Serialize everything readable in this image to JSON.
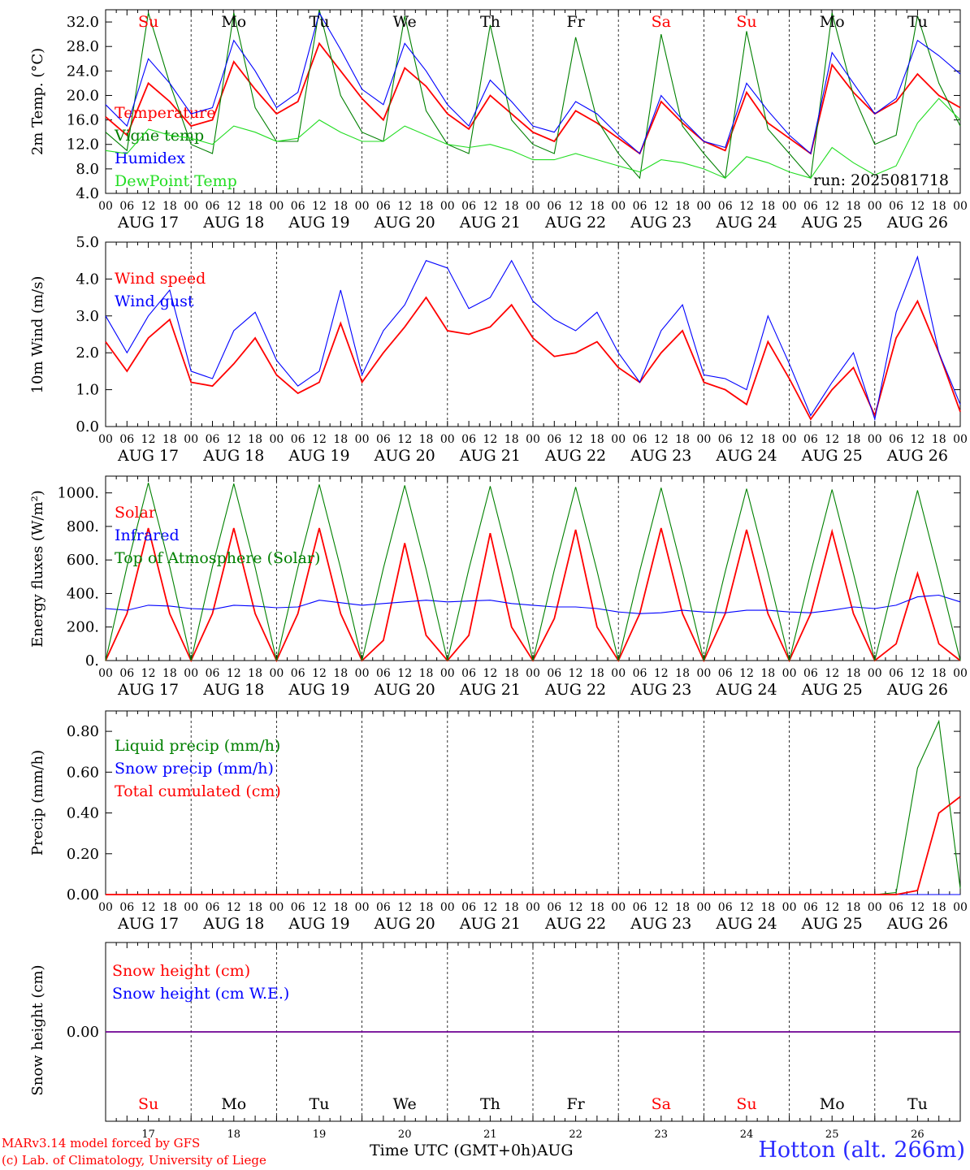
{
  "run_label": "run: 2025081718",
  "footer": {
    "credit_line1": "MARv3.14 model forced by GFS",
    "credit_line2": "(c) Lab. of Climatology, University of Liege",
    "x_title": "Time UTC (GMT+0h)AUG",
    "station": "Hotton (alt. 266m)"
  },
  "colors": {
    "red": "#ff0000",
    "green": "#008000",
    "blue": "#0000ff",
    "lightgreen": "#22dd22"
  },
  "chart_data": {
    "type": "line",
    "days": [
      {
        "dow": "Su",
        "date": "AUG 17",
        "num": "17",
        "weekend": true
      },
      {
        "dow": "Mo",
        "date": "AUG 18",
        "num": "18",
        "weekend": false
      },
      {
        "dow": "Tu",
        "date": "AUG 19",
        "num": "19",
        "weekend": false
      },
      {
        "dow": "We",
        "date": "AUG 20",
        "num": "20",
        "weekend": false
      },
      {
        "dow": "Th",
        "date": "AUG 21",
        "num": "21",
        "weekend": false
      },
      {
        "dow": "Fr",
        "date": "AUG 22",
        "num": "22",
        "weekend": false
      },
      {
        "dow": "Sa",
        "date": "AUG 23",
        "num": "23",
        "weekend": true
      },
      {
        "dow": "Su",
        "date": "AUG 24",
        "num": "24",
        "weekend": true
      },
      {
        "dow": "Mo",
        "date": "AUG 25",
        "num": "25",
        "weekend": false
      },
      {
        "dow": "Tu",
        "date": "AUG 26",
        "num": "26",
        "weekend": false
      }
    ],
    "hour_ticks": [
      "00",
      "06",
      "12",
      "18"
    ],
    "x_hours_note": "series sampled every 6 hours from AUG 17 00 UTC to AUG 27 00 UTC",
    "panels": [
      {
        "id": "temperature",
        "ylabel": "2m Temp. (°C)",
        "ylim": [
          4.0,
          34.0
        ],
        "yticks": [
          "4.0",
          "8.0",
          "12.0",
          "16.0",
          "20.0",
          "24.0",
          "28.0",
          "32.0"
        ],
        "series": [
          {
            "name": "Temperature",
            "color": "red",
            "values": [
              16.5,
              13.5,
              22.0,
              19.0,
              15.0,
              16.0,
              25.5,
              21.0,
              17.0,
              19.0,
              28.5,
              24.0,
              19.5,
              16.0,
              24.5,
              21.5,
              17.0,
              14.5,
              20.0,
              17.0,
              14.0,
              12.5,
              17.5,
              15.5,
              13.0,
              10.5,
              19.0,
              15.5,
              12.5,
              11.0,
              20.5,
              15.5,
              13.0,
              10.5,
              25.0,
              20.5,
              17.0,
              19.0,
              23.5,
              20.0,
              18.0
            ]
          },
          {
            "name": "Vigne temp",
            "color": "green",
            "values": [
              14.0,
              11.0,
              33.5,
              22.0,
              12.0,
              10.5,
              33.5,
              18.0,
              12.5,
              12.5,
              34.0,
              20.0,
              14.0,
              12.5,
              33.0,
              17.5,
              12.0,
              10.5,
              31.5,
              16.0,
              12.0,
              10.5,
              29.5,
              16.0,
              10.5,
              6.5,
              30.0,
              15.0,
              10.5,
              6.5,
              30.5,
              14.5,
              10.5,
              6.5,
              33.5,
              20.0,
              12.0,
              13.5,
              33.0,
              22.0,
              15.0
            ]
          },
          {
            "name": "Humidex",
            "color": "blue",
            "values": [
              18.5,
              15.0,
              26.0,
              22.0,
              17.0,
              18.0,
              29.0,
              24.0,
              18.0,
              20.5,
              33.5,
              27.5,
              21.0,
              18.5,
              28.5,
              24.0,
              18.5,
              15.0,
              22.5,
              19.0,
              15.0,
              14.0,
              19.0,
              17.0,
              13.5,
              10.5,
              20.0,
              16.0,
              12.5,
              11.5,
              22.0,
              17.5,
              13.5,
              10.5,
              27.0,
              22.0,
              17.0,
              19.5,
              29.0,
              26.5,
              23.5
            ]
          },
          {
            "name": "DewPoint Temp",
            "color": "lightgreen",
            "values": [
              11.0,
              10.5,
              14.5,
              13.5,
              13.0,
              12.0,
              15.0,
              14.0,
              12.5,
              13.0,
              16.0,
              14.0,
              12.5,
              12.5,
              15.0,
              13.5,
              12.0,
              11.5,
              12.0,
              11.0,
              9.5,
              9.5,
              10.5,
              9.5,
              8.5,
              7.5,
              9.5,
              9.0,
              8.0,
              6.5,
              10.0,
              9.0,
              7.5,
              6.5,
              11.5,
              9.0,
              7.0,
              8.5,
              15.5,
              19.5,
              16.0
            ]
          }
        ]
      },
      {
        "id": "wind",
        "ylabel": "10m Wind (m/s)",
        "ylim": [
          0.0,
          5.0
        ],
        "yticks": [
          "0.0",
          "1.0",
          "2.0",
          "3.0",
          "4.0",
          "5.0"
        ],
        "series": [
          {
            "name": "Wind speed",
            "color": "red",
            "values": [
              2.3,
              1.5,
              2.4,
              2.9,
              1.2,
              1.1,
              1.7,
              2.4,
              1.4,
              0.9,
              1.2,
              2.8,
              1.2,
              2.0,
              2.7,
              3.5,
              2.6,
              2.5,
              2.7,
              3.3,
              2.4,
              1.9,
              2.0,
              2.3,
              1.6,
              1.2,
              2.0,
              2.6,
              1.2,
              1.0,
              0.6,
              2.3,
              1.3,
              0.2,
              1.0,
              1.6,
              0.3,
              2.4,
              3.4,
              2.0,
              0.4
            ]
          },
          {
            "name": "Wind gust",
            "color": "blue",
            "values": [
              3.0,
              2.0,
              3.0,
              3.7,
              1.5,
              1.3,
              2.6,
              3.1,
              1.8,
              1.1,
              1.5,
              3.7,
              1.4,
              2.6,
              3.3,
              4.5,
              4.3,
              3.2,
              3.5,
              4.5,
              3.4,
              2.9,
              2.6,
              3.1,
              2.0,
              1.2,
              2.6,
              3.3,
              1.4,
              1.3,
              1.0,
              3.0,
              1.7,
              0.3,
              1.2,
              2.0,
              0.2,
              3.1,
              4.6,
              2.0,
              0.6
            ]
          }
        ]
      },
      {
        "id": "energy",
        "ylabel": "Energy fluxes (W/m²)",
        "ylim": [
          0,
          1100
        ],
        "yticks": [
          "0.",
          "200.",
          "400.",
          "600.",
          "800.",
          "1000."
        ],
        "series": [
          {
            "name": "Solar",
            "color": "red",
            "values": [
              0,
              280,
              790,
              280,
              0,
              280,
              790,
              280,
              0,
              280,
              790,
              280,
              0,
              120,
              700,
              150,
              0,
              150,
              760,
              200,
              0,
              250,
              780,
              200,
              0,
              280,
              790,
              280,
              0,
              280,
              780,
              280,
              0,
              280,
              770,
              280,
              0,
              100,
              520,
              100,
              0
            ]
          },
          {
            "name": "Infrared",
            "color": "blue",
            "values": [
              310,
              300,
              330,
              325,
              310,
              305,
              330,
              325,
              315,
              320,
              360,
              345,
              330,
              340,
              350,
              360,
              350,
              355,
              360,
              340,
              330,
              320,
              320,
              310,
              290,
              280,
              285,
              300,
              290,
              285,
              300,
              300,
              290,
              285,
              300,
              320,
              310,
              330,
              380,
              390,
              350
            ]
          },
          {
            "name": "Top of Atmosphere (Solar)",
            "color": "green",
            "values": [
              0,
              560,
              1060,
              560,
              0,
              560,
              1055,
              555,
              0,
              555,
              1050,
              550,
              0,
              550,
              1045,
              545,
              0,
              545,
              1040,
              540,
              0,
              540,
              1035,
              535,
              0,
              535,
              1030,
              530,
              0,
              530,
              1025,
              525,
              0,
              525,
              1020,
              520,
              0,
              520,
              1015,
              515,
              0
            ]
          }
        ]
      },
      {
        "id": "precip",
        "ylabel": "Precip (mm/h)",
        "ylim": [
          0.0,
          0.9
        ],
        "yticks": [
          "0.00",
          "0.20",
          "0.40",
          "0.60",
          "0.80"
        ],
        "series": [
          {
            "name": "Liquid precip (mm/h)",
            "color": "green",
            "values": [
              0,
              0,
              0,
              0,
              0,
              0,
              0,
              0,
              0,
              0,
              0,
              0,
              0,
              0,
              0,
              0,
              0,
              0,
              0,
              0,
              0,
              0,
              0,
              0,
              0,
              0,
              0,
              0,
              0,
              0,
              0,
              0,
              0,
              0,
              0,
              0,
              0,
              0.01,
              0.62,
              0.85,
              0.03
            ]
          },
          {
            "name": "Snow precip (mm/h)",
            "color": "blue",
            "values": [
              0,
              0,
              0,
              0,
              0,
              0,
              0,
              0,
              0,
              0,
              0,
              0,
              0,
              0,
              0,
              0,
              0,
              0,
              0,
              0,
              0,
              0,
              0,
              0,
              0,
              0,
              0,
              0,
              0,
              0,
              0,
              0,
              0,
              0,
              0,
              0,
              0,
              0,
              0,
              0,
              0
            ]
          },
          {
            "name": "Total cumulated (cm)",
            "color": "red",
            "values": [
              0,
              0,
              0,
              0,
              0,
              0,
              0,
              0,
              0,
              0,
              0,
              0,
              0,
              0,
              0,
              0,
              0,
              0,
              0,
              0,
              0,
              0,
              0,
              0,
              0,
              0,
              0,
              0,
              0,
              0,
              0,
              0,
              0,
              0,
              0,
              0,
              0,
              0,
              0.02,
              0.4,
              0.48
            ]
          }
        ]
      },
      {
        "id": "snow",
        "ylabel": "Snow height (cm)",
        "ylim": [
          -1.0,
          1.0
        ],
        "yticks": [
          "0.00"
        ],
        "series": [
          {
            "name": "Snow height (cm)",
            "color": "red",
            "values": [
              0,
              0,
              0,
              0,
              0,
              0,
              0,
              0,
              0,
              0,
              0,
              0,
              0,
              0,
              0,
              0,
              0,
              0,
              0,
              0,
              0,
              0,
              0,
              0,
              0,
              0,
              0,
              0,
              0,
              0,
              0,
              0,
              0,
              0,
              0,
              0,
              0,
              0,
              0,
              0,
              0
            ]
          },
          {
            "name": "Snow height (cm W.E.)",
            "color": "blue",
            "values": [
              0,
              0,
              0,
              0,
              0,
              0,
              0,
              0,
              0,
              0,
              0,
              0,
              0,
              0,
              0,
              0,
              0,
              0,
              0,
              0,
              0,
              0,
              0,
              0,
              0,
              0,
              0,
              0,
              0,
              0,
              0,
              0,
              0,
              0,
              0,
              0,
              0,
              0,
              0,
              0,
              0
            ]
          }
        ]
      }
    ]
  }
}
